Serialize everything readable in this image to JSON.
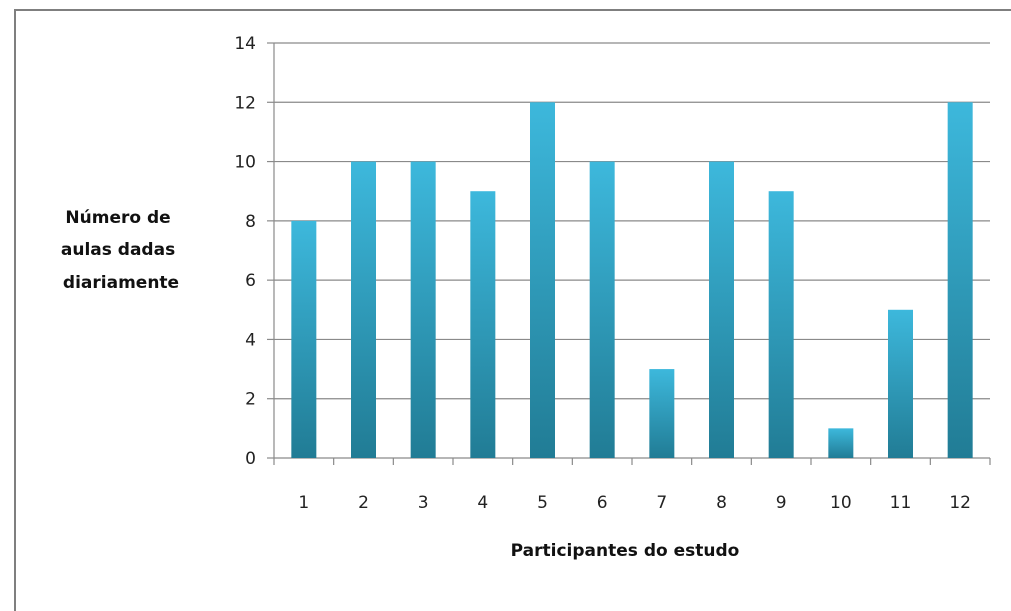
{
  "chart_data": {
    "type": "bar",
    "categories": [
      "1",
      "2",
      "3",
      "4",
      "5",
      "6",
      "7",
      "8",
      "9",
      "10",
      "11",
      "12"
    ],
    "values": [
      8,
      10,
      10,
      9,
      12,
      10,
      3,
      10,
      9,
      1,
      5,
      12
    ],
    "title": "",
    "xlabel": "Participantes do estudo",
    "ylabel_lines": [
      "Número de",
      "aulas dadas",
      "diariamente"
    ],
    "ylim": [
      0,
      14
    ],
    "yticks": [
      0,
      2,
      4,
      6,
      8,
      10,
      12,
      14
    ],
    "grid": true,
    "legend": "none",
    "bar_color_top": "#3db8dc",
    "bar_color_bottom": "#217c95"
  }
}
